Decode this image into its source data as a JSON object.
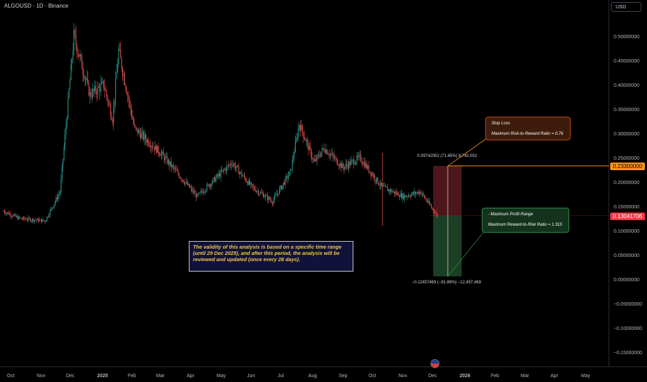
{
  "header": {
    "symbol_label": "ALGOUSD · 1D · Binance",
    "currency_button": "USD"
  },
  "price_axis": {
    "ticks": [
      "0.50000000",
      "0.45000000",
      "0.40000000",
      "0.35000000",
      "0.30000000",
      "0.25000000",
      "0.20000000",
      "0.15000000",
      "0.10000000",
      "0.05000000",
      "0.00000000",
      "−0.05000000",
      "−0.10000000",
      "−0.15000000"
    ],
    "stop_loss_tag": "0.23300000",
    "last_price_tag": "0.13041706",
    "stop_loss_color": "#f7931a",
    "last_price_color": "#f23645"
  },
  "time_axis": {
    "labels": [
      "Oct",
      "Nov",
      "Dec",
      "2025",
      "Feb",
      "Mar",
      "Apr",
      "May",
      "Jun",
      "Jul",
      "Aug",
      "Sep",
      "Oct",
      "Nov",
      "Dec",
      "2026",
      "Feb",
      "Mar",
      "Apr",
      "May"
    ]
  },
  "annotations": {
    "stop_loss_title": "Stop Loss",
    "stop_loss_ratio": "Maximum Risk-to-Reward Ratio = 0.76",
    "profit_title": "- Maximum Profit Range",
    "profit_ratio": "Maximum Reward-to-Risk Ratio = 1.315",
    "measure_top": "0.09742052 (71.85%) 9,742,052",
    "measure_bottom": "−0.12457469 (−91.89%) −12,457,469",
    "validity_note": "The validity of this analysis is based on a specific time range (until 29 Dec 2025), and after this period, the analysis will be reviewed and updated (once every 28 days)."
  },
  "chart_data": {
    "type": "candlestick",
    "symbol": "ALGOUSD",
    "timeframe": "1D",
    "exchange": "Binance",
    "ylim": [
      -0.17,
      0.54
    ],
    "y_ticks": [
      0.5,
      0.45,
      0.4,
      0.35,
      0.3,
      0.25,
      0.2,
      0.15,
      0.1,
      0.05,
      0.0,
      -0.05,
      -0.1,
      -0.15
    ],
    "x_labels": [
      "Oct",
      "Nov",
      "Dec",
      "2025",
      "Feb",
      "Mar",
      "Apr",
      "May",
      "Jun",
      "Jul",
      "Aug",
      "Sep",
      "Oct",
      "Nov",
      "Dec",
      "2026",
      "Feb",
      "Mar",
      "Apr",
      "May"
    ],
    "price_path": [
      {
        "date": "2024-09-24",
        "price": 0.14
      },
      {
        "date": "2024-10-10",
        "price": 0.125
      },
      {
        "date": "2024-11-05",
        "price": 0.12
      },
      {
        "date": "2024-11-20",
        "price": 0.18
      },
      {
        "date": "2024-12-04",
        "price": 0.5
      },
      {
        "date": "2024-12-20",
        "price": 0.38
      },
      {
        "date": "2025-01-03",
        "price": 0.4
      },
      {
        "date": "2025-01-12",
        "price": 0.33
      },
      {
        "date": "2025-01-18",
        "price": 0.47
      },
      {
        "date": "2025-02-03",
        "price": 0.31
      },
      {
        "date": "2025-03-01",
        "price": 0.26
      },
      {
        "date": "2025-04-07",
        "price": 0.17
      },
      {
        "date": "2025-05-12",
        "price": 0.24
      },
      {
        "date": "2025-06-01",
        "price": 0.19
      },
      {
        "date": "2025-06-22",
        "price": 0.16
      },
      {
        "date": "2025-07-10",
        "price": 0.22
      },
      {
        "date": "2025-07-19",
        "price": 0.32
      },
      {
        "date": "2025-08-03",
        "price": 0.24
      },
      {
        "date": "2025-08-13",
        "price": 0.27
      },
      {
        "date": "2025-09-01",
        "price": 0.23
      },
      {
        "date": "2025-09-18",
        "price": 0.25
      },
      {
        "date": "2025-10-10",
        "price": 0.19
      },
      {
        "date": "2025-11-01",
        "price": 0.17
      },
      {
        "date": "2025-11-18",
        "price": 0.18
      },
      {
        "date": "2025-12-05",
        "price": 0.1304
      }
    ],
    "stop_loss": 0.233,
    "entry": 0.13041706,
    "target": 0.0058,
    "last_price": 0.13041706
  }
}
